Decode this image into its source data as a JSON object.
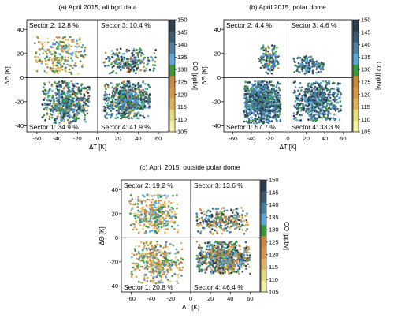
{
  "chart_data": [
    {
      "type": "scatter",
      "title": "(a) April 2015, all bgd data",
      "xlabel": "ΔT [K]",
      "ylabel": "ΔΘ [K]",
      "xlim": [
        -70,
        70
      ],
      "ylim": [
        -45,
        48
      ],
      "xticks": [
        -60,
        -40,
        -20,
        0,
        20,
        40,
        60
      ],
      "yticks": [
        -40,
        -20,
        0,
        20,
        40
      ],
      "sectors": [
        {
          "label": "Sector 2: 12.8 %",
          "position": "top-left"
        },
        {
          "label": "Sector 3: 10.4 %",
          "position": "top-right"
        },
        {
          "label": "Sector 1: 34.9 %",
          "position": "bottom-left"
        },
        {
          "label": "Sector 4: 41.9 %",
          "position": "bottom-right"
        }
      ],
      "clusters": [
        {
          "sector": 2,
          "x_range": [
            -62,
            -12
          ],
          "y_range": [
            3,
            35
          ],
          "co_range": [
            110,
            140
          ],
          "share": 12.8
        },
        {
          "sector": 3,
          "x_range": [
            6,
            58
          ],
          "y_range": [
            3,
            24
          ],
          "co_range": [
            122,
            150
          ],
          "share": 10.4
        },
        {
          "sector": 1,
          "x_range": [
            -55,
            -8
          ],
          "y_range": [
            -38,
            -3
          ],
          "co_range": [
            125,
            150
          ],
          "share": 34.9
        },
        {
          "sector": 4,
          "x_range": [
            6,
            52
          ],
          "y_range": [
            -34,
            -3
          ],
          "co_range": [
            125,
            150
          ],
          "share": 41.9
        }
      ],
      "colorbar": {
        "label": "CO [ppbv]",
        "min": 105,
        "max": 150,
        "ticks": [
          105,
          110,
          115,
          120,
          125,
          130,
          135,
          140,
          145,
          150
        ]
      }
    },
    {
      "type": "scatter",
      "title": "(b) April 2015, polar dome",
      "xlabel": "ΔT [K]",
      "ylabel": "ΔΘ [K]",
      "xlim": [
        -70,
        70
      ],
      "ylim": [
        -45,
        48
      ],
      "xticks": [
        -60,
        -40,
        -20,
        0,
        20,
        40,
        60
      ],
      "yticks": [
        -40,
        -20,
        0,
        20,
        40
      ],
      "sectors": [
        {
          "label": "Sector 2: 4.4 %",
          "position": "top-left"
        },
        {
          "label": "Sector 3: 4.6 %",
          "position": "top-right"
        },
        {
          "label": "Sector 1: 57.7 %",
          "position": "bottom-left"
        },
        {
          "label": "Sector 4: 33.3 %",
          "position": "bottom-right"
        }
      ],
      "clusters": [
        {
          "sector": 2,
          "x_range": [
            -32,
            -10
          ],
          "y_range": [
            3,
            27
          ],
          "co_range": [
            125,
            150
          ],
          "share": 4.4
        },
        {
          "sector": 3,
          "x_range": [
            6,
            40
          ],
          "y_range": [
            3,
            18
          ],
          "co_range": [
            130,
            150
          ],
          "share": 4.6
        },
        {
          "sector": 1,
          "x_range": [
            -48,
            -8
          ],
          "y_range": [
            -38,
            -3
          ],
          "co_range": [
            130,
            150
          ],
          "share": 57.7
        },
        {
          "sector": 4,
          "x_range": [
            6,
            58
          ],
          "y_range": [
            -36,
            -3
          ],
          "co_range": [
            130,
            150
          ],
          "share": 33.3
        }
      ],
      "colorbar": {
        "label": "CO [ppbv]",
        "min": 105,
        "max": 150,
        "ticks": [
          105,
          110,
          115,
          120,
          125,
          130,
          135,
          140,
          145,
          150
        ]
      }
    },
    {
      "type": "scatter",
      "title": "(c) April 2015, outside polar dome",
      "xlabel": "ΔT [K]",
      "ylabel": "ΔΘ [K]",
      "xlim": [
        -70,
        70
      ],
      "ylim": [
        -45,
        48
      ],
      "xticks": [
        -60,
        -40,
        -20,
        0,
        20,
        40,
        60
      ],
      "yticks": [
        -40,
        -20,
        0,
        20,
        40
      ],
      "sectors": [
        {
          "label": "Sector 2: 19.2 %",
          "position": "top-left"
        },
        {
          "label": "Sector 3: 13.6 %",
          "position": "top-right"
        },
        {
          "label": "Sector 1: 20.8 %",
          "position": "bottom-left"
        },
        {
          "label": "Sector 4: 46.4 %",
          "position": "bottom-right"
        }
      ],
      "clusters": [
        {
          "sector": 2,
          "x_range": [
            -62,
            -12
          ],
          "y_range": [
            3,
            36
          ],
          "co_range": [
            110,
            140
          ],
          "share": 19.2
        },
        {
          "sector": 3,
          "x_range": [
            6,
            58
          ],
          "y_range": [
            3,
            25
          ],
          "co_range": [
            115,
            150
          ],
          "share": 13.6
        },
        {
          "sector": 1,
          "x_range": [
            -60,
            -8
          ],
          "y_range": [
            -38,
            -3
          ],
          "co_range": [
            110,
            140
          ],
          "share": 20.8
        },
        {
          "sector": 4,
          "x_range": [
            6,
            60
          ],
          "y_range": [
            -30,
            -3
          ],
          "co_range": [
            118,
            150
          ],
          "share": 46.4
        }
      ],
      "colorbar": {
        "label": "CO [ppbv]",
        "min": 105,
        "max": 150,
        "ticks": [
          105,
          110,
          115,
          120,
          125,
          130,
          135,
          140,
          145,
          150
        ]
      }
    }
  ],
  "colors": {
    "colormap": [
      "#f2f2a0",
      "#e6dc7a",
      "#e0b25c",
      "#d99548",
      "#c98a3c",
      "#3a9a3a",
      "#5aa8d8",
      "#4a7fa0",
      "#3a5a72",
      "#2a3e4e"
    ],
    "axis": "#000000",
    "background": "#ffffff"
  }
}
